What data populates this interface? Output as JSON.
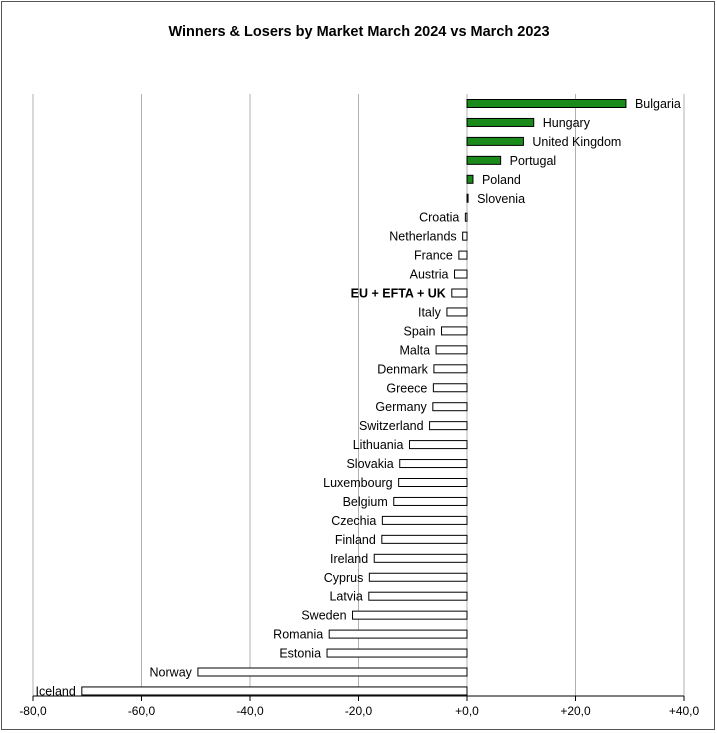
{
  "chart_data": {
    "type": "bar",
    "orientation": "horizontal",
    "title": "Winners & Losers by Market March 2024 vs March 2023",
    "xlabel": "",
    "ylabel": "",
    "xlim": [
      -80,
      40
    ],
    "xticks": [
      -80,
      -60,
      -40,
      -20,
      0,
      20,
      40
    ],
    "xtick_labels": [
      "-80,0",
      "-60,0",
      "-40,0",
      "-20,0",
      "+0,0",
      "+20,0",
      "+40,0"
    ],
    "grid": "vertical",
    "legend": "none",
    "positive_color": "#1a8a1a",
    "negative_color": "#ffffff",
    "highlight_category": "EU + EFTA + UK",
    "categories": [
      "Bulgaria",
      "Hungary",
      "United Kingdom",
      "Portugal",
      "Poland",
      "Slovenia",
      "Croatia",
      "Netherlands",
      "France",
      "Austria",
      "EU + EFTA + UK",
      "Italy",
      "Spain",
      "Malta",
      "Denmark",
      "Greece",
      "Germany",
      "Switzerland",
      "Lithuania",
      "Slovakia",
      "Luxembourg",
      "Belgium",
      "Czechia",
      "Finland",
      "Ireland",
      "Cyprus",
      "Latvia",
      "Sweden",
      "Romania",
      "Estonia",
      "Norway",
      "Iceland"
    ],
    "values": [
      29.3,
      12.3,
      10.4,
      6.2,
      1.1,
      0.2,
      -0.3,
      -0.8,
      -1.5,
      -2.3,
      -2.8,
      -3.7,
      -4.7,
      -5.7,
      -6.1,
      -6.2,
      -6.3,
      -6.9,
      -10.6,
      -12.4,
      -12.6,
      -13.5,
      -15.6,
      -15.7,
      -17.1,
      -18.0,
      -18.1,
      -21.1,
      -25.4,
      -25.8,
      -49.6,
      -71.0
    ]
  }
}
